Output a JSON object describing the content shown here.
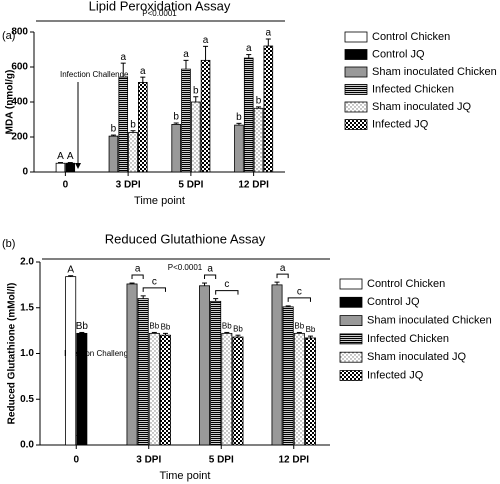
{
  "chart_data": [
    {
      "type": "bar",
      "panel": "(a)",
      "title": "Lipid Peroxidation Assay",
      "xlabel": "Time point",
      "ylabel": "MDA (nmol/g)",
      "p_value": "P<0.0001",
      "arrow_annotation": "Infection Challenge",
      "categories": [
        "0",
        "3 DPI",
        "5 DPI",
        "12 DPI"
      ],
      "ylim": [
        0,
        800
      ],
      "yticks": [
        0,
        200,
        400,
        600,
        800
      ],
      "series": [
        {
          "name": "Control Chicken",
          "color": "#ffffff",
          "pattern": "solid",
          "values": [
            50,
            null,
            null,
            null
          ],
          "errors": [
            4,
            null,
            null,
            null
          ],
          "letters": [
            "A",
            null,
            null,
            null
          ]
        },
        {
          "name": "Control JQ",
          "color": "#000000",
          "pattern": "solid",
          "values": [
            50,
            null,
            null,
            null
          ],
          "errors": [
            4,
            null,
            null,
            null
          ],
          "letters": [
            "A",
            null,
            null,
            null
          ]
        },
        {
          "name": "Sham inoculated Chicken",
          "color": "#999999",
          "pattern": "solid",
          "values": [
            null,
            205,
            272,
            268
          ],
          "errors": [
            null,
            6,
            8,
            10
          ],
          "letters": [
            null,
            "b",
            "b",
            "b"
          ]
        },
        {
          "name": "Infected Chicken",
          "color": "#000000",
          "pattern": "hlines",
          "values": [
            null,
            542,
            588,
            651
          ],
          "errors": [
            null,
            80,
            50,
            20
          ],
          "letters": [
            null,
            "a",
            "a",
            "a"
          ]
        },
        {
          "name": "Sham inoculated JQ",
          "color": "#777777",
          "pattern": "dots",
          "values": [
            null,
            226,
            400,
            364
          ],
          "errors": [
            null,
            10,
            30,
            8
          ],
          "letters": [
            null,
            "b",
            "b",
            "b"
          ]
        },
        {
          "name": "Infected JQ",
          "color": "#000000",
          "pattern": "checker",
          "values": [
            null,
            512,
            638,
            720
          ],
          "errors": [
            null,
            30,
            80,
            40
          ],
          "letters": [
            null,
            "a",
            "a",
            "a"
          ]
        }
      ]
    },
    {
      "type": "bar",
      "panel": "(b)",
      "title": "Reduced Glutathione Assay",
      "xlabel": "Time point",
      "ylabel": "Reduced Glutathione (mMol/l)",
      "p_value": "P<0.0001",
      "arrow_annotation": "Infection Challenge",
      "categories": [
        "0",
        "3 DPI",
        "5 DPI",
        "12 DPI"
      ],
      "ylim": [
        0,
        2
      ],
      "yticks": [
        {
          "value": 0,
          "label": "0.0"
        },
        {
          "value": 0.5,
          "label": "0.5"
        },
        {
          "value": 1,
          "label": "1.0"
        },
        {
          "value": 1.5,
          "label": "1.5"
        },
        {
          "value": 2,
          "label": "2.0"
        }
      ],
      "series": [
        {
          "name": "Control Chicken",
          "color": "#ffffff",
          "pattern": "solid",
          "values": [
            1.84,
            null,
            null,
            null
          ],
          "errors": [
            0.01,
            null,
            null,
            null
          ],
          "letters": [
            "A",
            null,
            null,
            null
          ]
        },
        {
          "name": "Control JQ",
          "color": "#000000",
          "pattern": "solid",
          "values": [
            1.22,
            null,
            null,
            null
          ],
          "errors": [
            0.01,
            null,
            null,
            null
          ],
          "letters": [
            "Bb",
            null,
            null,
            null
          ]
        },
        {
          "name": "Sham inoculated Chicken",
          "color": "#999999",
          "pattern": "solid",
          "values": [
            null,
            1.76,
            1.74,
            1.75
          ],
          "errors": [
            null,
            0.01,
            0.03,
            0.03
          ],
          "letters": [
            null,
            null,
            null,
            null
          ]
        },
        {
          "name": "Infected Chicken",
          "color": "#000000",
          "pattern": "hlines",
          "values": [
            null,
            1.6,
            1.57,
            1.51
          ],
          "errors": [
            null,
            0.03,
            0.03,
            0.01
          ],
          "letters": [
            null,
            null,
            null,
            null
          ]
        },
        {
          "name": "Sham inoculated JQ",
          "color": "#777777",
          "pattern": "dots",
          "values": [
            null,
            1.22,
            1.22,
            1.22
          ],
          "errors": [
            null,
            0.01,
            0.01,
            0.01
          ],
          "letters": [
            null,
            "Bb",
            "Bb",
            "Bb"
          ]
        },
        {
          "name": "Infected JQ",
          "color": "#000000",
          "pattern": "checker",
          "values": [
            null,
            1.2,
            1.18,
            1.17
          ],
          "errors": [
            null,
            0.02,
            0.02,
            0.02
          ],
          "letters": [
            null,
            "Bb",
            "Bb",
            "Bb"
          ]
        }
      ],
      "brackets": [
        {
          "series": [
            2,
            3
          ],
          "labels": [
            null,
            "a",
            "a",
            "a"
          ]
        },
        {
          "series": [
            3,
            5
          ],
          "labels": [
            null,
            "c",
            "c",
            "c"
          ]
        }
      ]
    }
  ]
}
